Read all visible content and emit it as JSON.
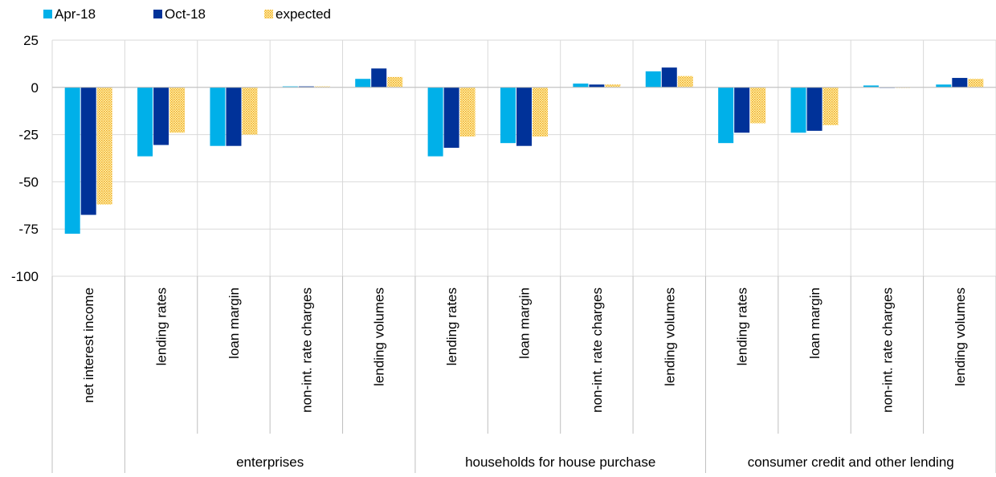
{
  "chart_data": {
    "type": "bar",
    "title": "",
    "xlabel": "",
    "ylabel": "",
    "ylim": [
      -100,
      25
    ],
    "yticks": [
      25,
      0,
      -25,
      -50,
      -75,
      -100
    ],
    "grid": true,
    "legend_position": "top-left",
    "categories": [
      "net interest income",
      "lending rates",
      "loan margin",
      "non-int. rate charges",
      "lending volumes",
      "lending rates",
      "loan margin",
      "non-int. rate charges",
      "lending volumes",
      "lending rates",
      "loan margin",
      "non-int. rate charges",
      "lending volumes"
    ],
    "groups": [
      {
        "label": "",
        "start": 0,
        "count": 1
      },
      {
        "label": "enterprises",
        "start": 1,
        "count": 4
      },
      {
        "label": "households for house purchase",
        "start": 5,
        "count": 4
      },
      {
        "label": "consumer credit and other lending",
        "start": 9,
        "count": 4
      }
    ],
    "series": [
      {
        "name": "Apr-18",
        "color": "#00b0e9",
        "pattern": "solid",
        "values": [
          -77.5,
          -36.5,
          -31,
          0.5,
          4.5,
          -36.5,
          -29.5,
          2,
          8.5,
          -29.5,
          -24,
          1,
          1.5
        ]
      },
      {
        "name": "Oct-18",
        "color": "#003299",
        "pattern": "solid",
        "values": [
          -67.5,
          -30.5,
          -31,
          0.5,
          10,
          -32,
          -31,
          1.5,
          10.5,
          -24,
          -23,
          0,
          5
        ]
      },
      {
        "name": "expected",
        "color": "#ffbe2d",
        "pattern": "dotted",
        "values": [
          -62,
          -24,
          -25,
          0.5,
          5.5,
          -26,
          -26,
          1.5,
          6,
          -19,
          -20,
          0,
          4.5
        ]
      }
    ]
  }
}
